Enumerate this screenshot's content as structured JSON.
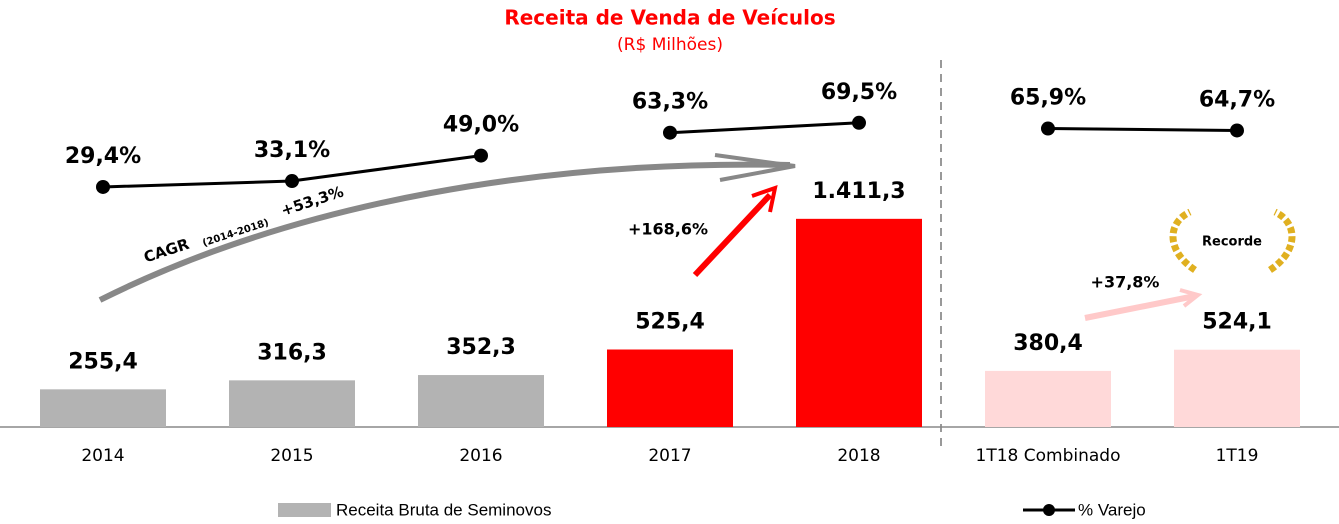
{
  "chart_data": {
    "type": "bar_line",
    "title": "Receita de Venda de Veículos",
    "subtitle": "(R$ Milhões)",
    "categories": [
      "2014",
      "2015",
      "2016",
      "2017",
      "2018",
      "1T18 Combinado",
      "1T19"
    ],
    "series": [
      {
        "name": "Receita Bruta de Seminovos",
        "colors": [
          "#b3b3b3",
          "#b3b3b3",
          "#b3b3b3",
          "#ff0000",
          "#ff0000",
          "#ffd9d9",
          "#ffd9d9"
        ],
        "values": [
          255.4,
          316.3,
          352.3,
          525.4,
          1411.3,
          380.4,
          524.1
        ],
        "value_labels": [
          "255,4",
          "316,3",
          "352,3",
          "525,4",
          "1.411,3",
          "380,4",
          "524,1"
        ]
      },
      {
        "name": "% Varejo",
        "color": "#000000",
        "axis": "y2",
        "values": [
          29.4,
          33.1,
          49.0,
          63.3,
          69.5,
          65.9,
          64.7
        ],
        "value_labels": [
          "29,4%",
          "33,1%",
          "49,0%",
          "63,3%",
          "69,5%",
          "65,9%",
          "64,7%"
        ]
      }
    ],
    "ylim": [
      0,
      1600
    ],
    "y2lim": [
      0,
      100
    ],
    "annotations": {
      "cagr": "CAGR",
      "cagr_period": "(2014-2018)",
      "cagr_value": "+53,3%",
      "growth_2018": "+168,6%",
      "growth_1t19": "+37,8%",
      "record": "Recorde"
    }
  }
}
